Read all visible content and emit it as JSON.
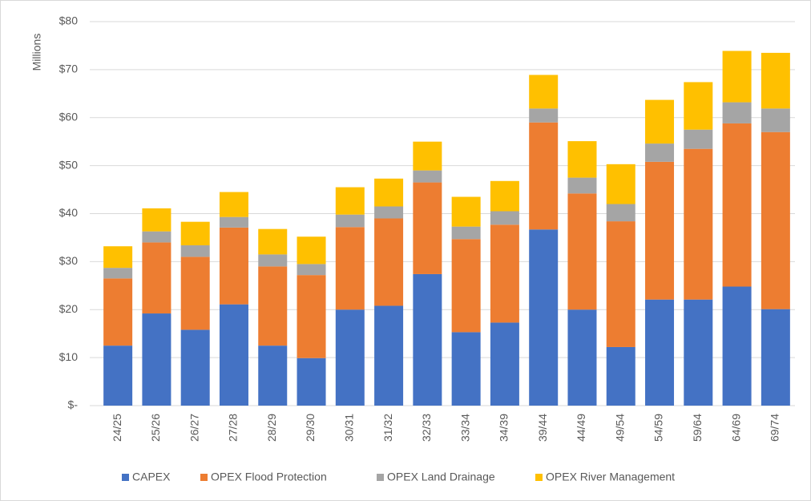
{
  "chart_data": {
    "type": "stacked_bar",
    "y_label": "Millions",
    "categories": [
      "24/25",
      "25/26",
      "26/27",
      "27/28",
      "28/29",
      "29/30",
      "30/31",
      "31/32",
      "32/33",
      "33/34",
      "34/39",
      "39/44",
      "44/49",
      "49/54",
      "54/59",
      "59/64",
      "64/69",
      "69/74"
    ],
    "series": [
      {
        "name": "CAPEX",
        "color": "#4472c4",
        "values": [
          12.5,
          19.2,
          15.8,
          21.1,
          12.5,
          9.9,
          20,
          20.8,
          27.4,
          15.3,
          17.3,
          36.7,
          20,
          12.2,
          22.1,
          22.1,
          24.8,
          20.1
        ]
      },
      {
        "name": "OPEX Flood Protection",
        "color": "#ed7d31",
        "values": [
          14,
          14.8,
          15.2,
          16,
          16.5,
          17.3,
          17.2,
          18.2,
          19.1,
          19.4,
          20.4,
          22.3,
          24.2,
          26.2,
          28.7,
          31.4,
          34,
          36.9
        ]
      },
      {
        "name": "OPEX Land Drainage",
        "color": "#a5a5a5",
        "values": [
          2.2,
          2.3,
          2.4,
          2.2,
          2.5,
          2.3,
          2.6,
          2.5,
          2.5,
          2.6,
          2.8,
          2.9,
          3.3,
          3.6,
          3.8,
          4,
          4.4,
          4.9
        ]
      },
      {
        "name": "OPEX River Management",
        "color": "#ffc000",
        "values": [
          4.5,
          4.8,
          4.9,
          5.2,
          5.3,
          5.7,
          5.7,
          5.8,
          6,
          6.2,
          6.3,
          7,
          7.6,
          8.3,
          9.1,
          9.9,
          10.7,
          11.6
        ]
      }
    ],
    "ylim": [
      0,
      80
    ],
    "yticks": [
      {
        "value": 0,
        "label": "$-"
      },
      {
        "value": 10,
        "label": "$10"
      },
      {
        "value": 20,
        "label": "$20"
      },
      {
        "value": 30,
        "label": "$30"
      },
      {
        "value": 40,
        "label": "$40"
      },
      {
        "value": 50,
        "label": "$50"
      },
      {
        "value": 60,
        "label": "$60"
      },
      {
        "value": 70,
        "label": "$70"
      },
      {
        "value": 80,
        "label": "$80"
      }
    ],
    "grid": true
  }
}
